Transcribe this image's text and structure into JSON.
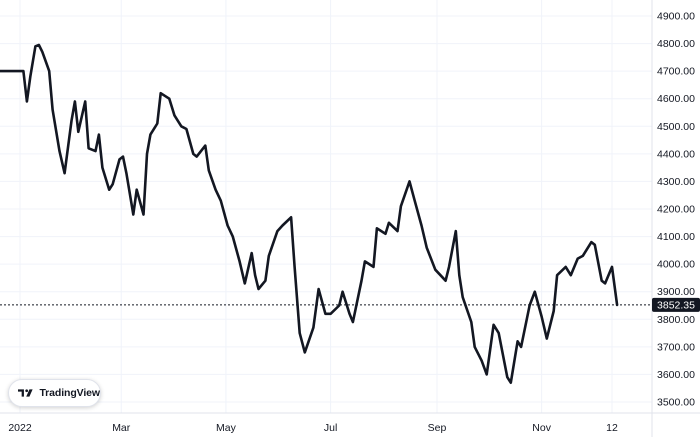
{
  "brand": {
    "name": "TradingView",
    "logo_icon": "tradingview-logo-icon"
  },
  "current_price": {
    "label": "3852.35",
    "value": 3852.35
  },
  "colors": {
    "line": "#131722",
    "grid": "#f0f3fa",
    "axis_text": "#131722",
    "price_box": "#131722",
    "background": "#ffffff"
  },
  "chart_data": {
    "type": "line",
    "title": "",
    "xlabel": "",
    "ylabel": "",
    "ylim": [
      3480,
      4900
    ],
    "y_ticks": [
      "4900.00",
      "4800.00",
      "4700.00",
      "4600.00",
      "4500.00",
      "4400.00",
      "4300.00",
      "4200.00",
      "4100.00",
      "4000.00",
      "3900.00",
      "3800.00",
      "3700.00",
      "3600.00",
      "3500.00"
    ],
    "x_ticks": [
      "2022",
      "Mar",
      "May",
      "Jul",
      "Sep",
      "Nov",
      "12"
    ],
    "grid": true,
    "series": [
      {
        "x": [
          "2022-01-03",
          "2022-01-05",
          "2022-01-07",
          "2022-01-10",
          "2022-01-12",
          "2022-01-14",
          "2022-01-18",
          "2022-01-20",
          "2022-01-24",
          "2022-01-27",
          "2022-01-31",
          "2022-02-02",
          "2022-02-04",
          "2022-02-08",
          "2022-02-10",
          "2022-02-14",
          "2022-02-16",
          "2022-02-18",
          "2022-02-22",
          "2022-02-24",
          "2022-02-28",
          "2022-03-02",
          "2022-03-04",
          "2022-03-08",
          "2022-03-10",
          "2022-03-14",
          "2022-03-16",
          "2022-03-18",
          "2022-03-22",
          "2022-03-24",
          "2022-03-29",
          "2022-04-01",
          "2022-04-05",
          "2022-04-08",
          "2022-04-12",
          "2022-04-14",
          "2022-04-19",
          "2022-04-21",
          "2022-04-25",
          "2022-04-28",
          "2022-05-02",
          "2022-05-05",
          "2022-05-09",
          "2022-05-12",
          "2022-05-16",
          "2022-05-18",
          "2022-05-20",
          "2022-05-24",
          "2022-05-26",
          "2022-05-31",
          "2022-06-03",
          "2022-06-08",
          "2022-06-10",
          "2022-06-13",
          "2022-06-16",
          "2022-06-21",
          "2022-06-24",
          "2022-06-28",
          "2022-07-01",
          "2022-07-06",
          "2022-07-08",
          "2022-07-12",
          "2022-07-14",
          "2022-07-19",
          "2022-07-21",
          "2022-07-26",
          "2022-07-28",
          "2022-08-02",
          "2022-08-04",
          "2022-08-09",
          "2022-08-11",
          "2022-08-16",
          "2022-08-19",
          "2022-08-23",
          "2022-08-26",
          "2022-08-31",
          "2022-09-06",
          "2022-09-08",
          "2022-09-12",
          "2022-09-14",
          "2022-09-16",
          "2022-09-21",
          "2022-09-23",
          "2022-09-27",
          "2022-09-30",
          "2022-10-04",
          "2022-10-07",
          "2022-10-12",
          "2022-10-14",
          "2022-10-18",
          "2022-10-20",
          "2022-10-25",
          "2022-10-28",
          "2022-11-01",
          "2022-11-04",
          "2022-11-08",
          "2022-11-10",
          "2022-11-15",
          "2022-11-18",
          "2022-11-22",
          "2022-11-25",
          "2022-11-30",
          "2022-12-02",
          "2022-12-06",
          "2022-12-08",
          "2022-12-12",
          "2022-12-15"
        ],
        "y": [
          4700,
          4590,
          4680,
          4790,
          4795,
          4770,
          4700,
          4560,
          4410,
          4330,
          4520,
          4590,
          4480,
          4590,
          4420,
          4410,
          4470,
          4350,
          4270,
          4290,
          4380,
          4390,
          4330,
          4180,
          4270,
          4180,
          4400,
          4470,
          4510,
          4620,
          4600,
          4540,
          4500,
          4490,
          4400,
          4390,
          4430,
          4340,
          4270,
          4230,
          4140,
          4100,
          4010,
          3930,
          4040,
          3960,
          3910,
          3940,
          4030,
          4120,
          4140,
          4170,
          3990,
          3750,
          3680,
          3770,
          3910,
          3820,
          3820,
          3850,
          3900,
          3820,
          3790,
          3940,
          4010,
          3990,
          4130,
          4110,
          4150,
          4120,
          4210,
          4300,
          4230,
          4140,
          4060,
          3980,
          3940,
          3990,
          4120,
          3960,
          3880,
          3790,
          3700,
          3650,
          3600,
          3780,
          3750,
          3590,
          3570,
          3720,
          3700,
          3850,
          3900,
          3810,
          3730,
          3830,
          3960,
          3990,
          3960,
          4020,
          4030,
          4080,
          4070,
          3940,
          3930,
          3990,
          3852.35
        ]
      }
    ]
  }
}
